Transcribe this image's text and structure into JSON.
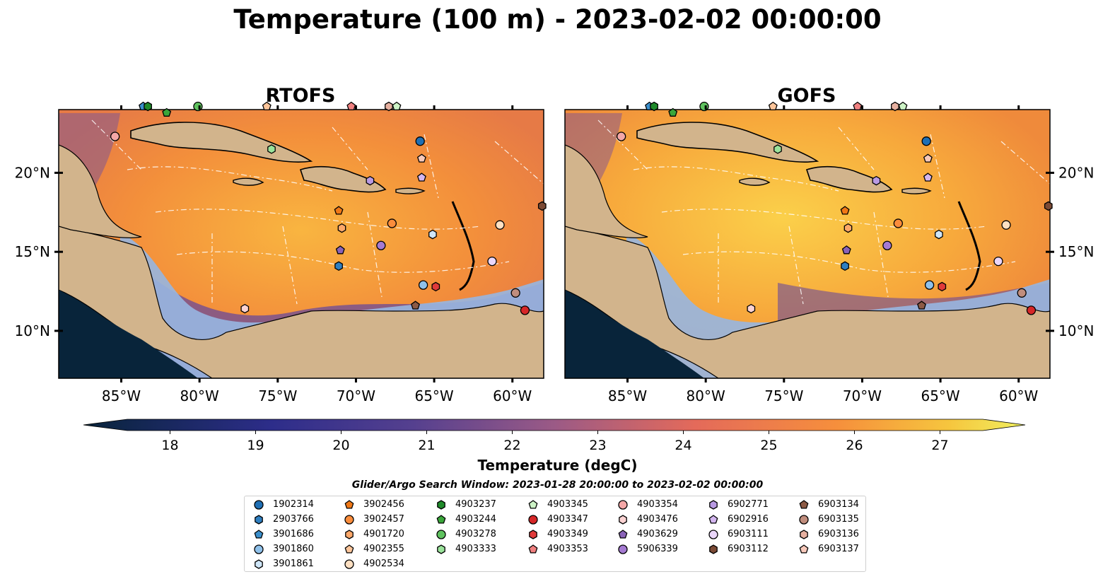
{
  "title": "Temperature (100 m) - 2023-02-02 00:00:00",
  "colors": {
    "land": "#d2b48c",
    "shelf": "#97b6e1",
    "deep_outside": "#08243a",
    "coast": "#000000"
  },
  "chart_data": {
    "type": "heatmap",
    "panels": [
      {
        "title": "RTOFS"
      },
      {
        "title": "GOFS"
      }
    ],
    "x_ticks": [
      "85°W",
      "80°W",
      "75°W",
      "70°W",
      "65°W",
      "60°W"
    ],
    "y_ticks": [
      "20°N",
      "15°N",
      "10°N"
    ],
    "xlim": [
      -89,
      -58
    ],
    "ylim": [
      7,
      24
    ],
    "colorbar": {
      "label": "Temperature (degC)",
      "ticks": [
        "18",
        "19",
        "20",
        "21",
        "22",
        "23",
        "24",
        "25",
        "26",
        "27"
      ],
      "range": [
        17.5,
        27.5
      ],
      "extend": "both"
    },
    "legend_title": "Glider/Argo Search Window: 2023-01-28 20:00:00 to 2023-02-02 00:00:00",
    "floats": [
      {
        "id": "1902314",
        "marker": "circle",
        "color": "#1f6fb4",
        "lon": -65.9,
        "lat": 22.0
      },
      {
        "id": "2903766",
        "marker": "hexagon",
        "color": "#2f7fc0",
        "lon": -71.1,
        "lat": 14.1
      },
      {
        "id": "3901686",
        "marker": "pentagon",
        "color": "#3b8fcc",
        "lon": -83.6,
        "lat": 24.2
      },
      {
        "id": "3901860",
        "marker": "circle",
        "color": "#8fc1ea",
        "lon": -65.7,
        "lat": 12.9
      },
      {
        "id": "3901861",
        "marker": "hexagon",
        "color": "#cfe6f8",
        "lon": -65.1,
        "lat": 16.1
      },
      {
        "id": "3902456",
        "marker": "pentagon",
        "color": "#f07816",
        "lon": -71.1,
        "lat": 17.6
      },
      {
        "id": "3902457",
        "marker": "circle",
        "color": "#fb8d3c",
        "lon": -67.7,
        "lat": 16.8
      },
      {
        "id": "4901720",
        "marker": "hexagon",
        "color": "#fda86a",
        "lon": -70.9,
        "lat": 16.5
      },
      {
        "id": "4902355",
        "marker": "pentagon",
        "color": "#fdc59a",
        "lon": -75.7,
        "lat": 24.2
      },
      {
        "id": "4902534",
        "marker": "circle",
        "color": "#ffe0c2",
        "lon": -60.8,
        "lat": 16.7
      },
      {
        "id": "4903237",
        "marker": "hexagon",
        "color": "#1f8a2a",
        "lon": -83.3,
        "lat": 24.2
      },
      {
        "id": "4903244",
        "marker": "pentagon",
        "color": "#3aa63a",
        "lon": -82.1,
        "lat": 23.8
      },
      {
        "id": "4903278",
        "marker": "circle",
        "color": "#5fc25f",
        "lon": -80.1,
        "lat": 24.2
      },
      {
        "id": "4903333",
        "marker": "hexagon",
        "color": "#9be39b",
        "lon": -75.4,
        "lat": 21.5
      },
      {
        "id": "4903345",
        "marker": "pentagon",
        "color": "#cdf3c6",
        "lon": -67.4,
        "lat": 24.2
      },
      {
        "id": "4903347",
        "marker": "circle",
        "color": "#d62728",
        "lon": -59.2,
        "lat": 11.3
      },
      {
        "id": "4903349",
        "marker": "hexagon",
        "color": "#e03a3a",
        "lon": -64.9,
        "lat": 12.8
      },
      {
        "id": "4903353",
        "marker": "pentagon",
        "color": "#f08080",
        "lon": -70.3,
        "lat": 24.2
      },
      {
        "id": "4903354",
        "marker": "circle",
        "color": "#f4a7a7",
        "lon": -85.4,
        "lat": 22.3
      },
      {
        "id": "4903476",
        "marker": "hexagon",
        "color": "#fcd3d3",
        "lon": -77.1,
        "lat": 11.4
      },
      {
        "id": "4903629",
        "marker": "pentagon",
        "color": "#8a63b8",
        "lon": -71.0,
        "lat": 15.1
      },
      {
        "id": "5906339",
        "marker": "circle",
        "color": "#a57ad2",
        "lon": -68.4,
        "lat": 15.4
      },
      {
        "id": "6902771",
        "marker": "hexagon",
        "color": "#b99ae3",
        "lon": -69.1,
        "lat": 19.5
      },
      {
        "id": "6902916",
        "marker": "pentagon",
        "color": "#d4b6f0",
        "lon": -65.8,
        "lat": 19.7
      },
      {
        "id": "6903111",
        "marker": "circle",
        "color": "#ead6fa",
        "lon": -61.3,
        "lat": 14.4
      },
      {
        "id": "6903112",
        "marker": "hexagon",
        "color": "#7b4a35",
        "lon": -58.1,
        "lat": 17.9
      },
      {
        "id": "6903134",
        "marker": "pentagon",
        "color": "#8c5a45",
        "lon": -66.2,
        "lat": 11.6
      },
      {
        "id": "6903135",
        "marker": "circle",
        "color": "#c08d7d",
        "lon": -59.8,
        "lat": 12.4
      },
      {
        "id": "6903136",
        "marker": "hexagon",
        "color": "#e6b0a0",
        "lon": -67.9,
        "lat": 24.2
      },
      {
        "id": "6903137",
        "marker": "pentagon",
        "color": "#f7c9bb",
        "lon": -65.8,
        "lat": 20.9
      }
    ]
  }
}
